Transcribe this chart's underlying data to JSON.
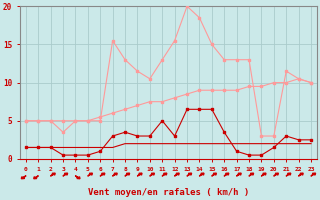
{
  "x": [
    0,
    1,
    2,
    3,
    4,
    5,
    6,
    7,
    8,
    9,
    10,
    11,
    12,
    13,
    14,
    15,
    16,
    17,
    18,
    19,
    20,
    21,
    22,
    23
  ],
  "series_rafales": [
    5.0,
    5.0,
    5.0,
    3.5,
    5.0,
    5.0,
    5.0,
    15.5,
    13.0,
    11.5,
    10.5,
    13.0,
    15.5,
    20.0,
    18.5,
    15.0,
    13.0,
    13.0,
    13.0,
    3.0,
    3.0,
    11.5,
    10.5,
    10.0
  ],
  "series_moyen": [
    1.5,
    1.5,
    1.5,
    0.5,
    0.5,
    0.5,
    1.0,
    3.0,
    3.5,
    3.0,
    3.0,
    5.0,
    3.0,
    6.5,
    6.5,
    6.5,
    3.5,
    1.0,
    0.5,
    0.5,
    1.5,
    3.0,
    2.5,
    2.5
  ],
  "series_trend_low": [
    1.5,
    1.5,
    1.5,
    1.5,
    1.5,
    1.5,
    1.5,
    1.5,
    2.0,
    2.0,
    2.0,
    2.0,
    2.0,
    2.0,
    2.0,
    2.0,
    2.0,
    2.0,
    2.0,
    2.0,
    2.0,
    2.0,
    2.0,
    2.0
  ],
  "series_trend_high": [
    5.0,
    5.0,
    5.0,
    5.0,
    5.0,
    5.0,
    5.5,
    6.0,
    6.5,
    7.0,
    7.5,
    7.5,
    8.0,
    8.5,
    9.0,
    9.0,
    9.0,
    9.0,
    9.5,
    9.5,
    10.0,
    10.0,
    10.5,
    10.0
  ],
  "wind_dirs": [
    225,
    225,
    45,
    45,
    315,
    45,
    45,
    45,
    45,
    45,
    45,
    45,
    45,
    45,
    45,
    45,
    45,
    45,
    45,
    45,
    45,
    45,
    45,
    45
  ],
  "color_rafales": "#FF9999",
  "color_moyen": "#CC0000",
  "color_trend_low": "#CC0000",
  "color_trend_high": "#FF9999",
  "bg_color": "#CBE9E9",
  "grid_color": "#AACCCC",
  "xlabel": "Vent moyen/en rafales ( km/h )",
  "ylim": [
    0,
    20
  ],
  "xlim_min": -0.5,
  "xlim_max": 23.5,
  "yticks": [
    0,
    5,
    10,
    15,
    20
  ],
  "xticks": [
    0,
    1,
    2,
    3,
    4,
    5,
    6,
    7,
    8,
    9,
    10,
    11,
    12,
    13,
    14,
    15,
    16,
    17,
    18,
    19,
    20,
    21,
    22,
    23
  ]
}
